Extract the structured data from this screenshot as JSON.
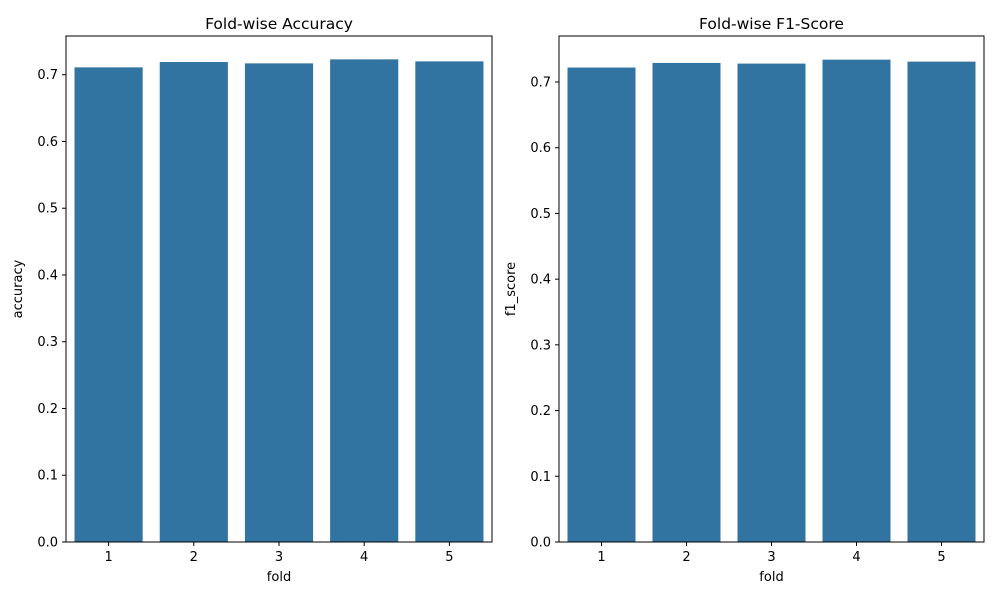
{
  "chart_data": [
    {
      "type": "bar",
      "title": "Fold-wise Accuracy",
      "xlabel": "fold",
      "ylabel": "accuracy",
      "categories": [
        "1",
        "2",
        "3",
        "4",
        "5"
      ],
      "values": [
        0.711,
        0.719,
        0.717,
        0.723,
        0.72
      ],
      "ylim": [
        0,
        0.758
      ],
      "yticks": [
        0.0,
        0.1,
        0.2,
        0.3,
        0.4,
        0.5,
        0.6,
        0.7
      ],
      "ytick_labels": [
        "0.0",
        "0.1",
        "0.2",
        "0.3",
        "0.4",
        "0.5",
        "0.6",
        "0.7"
      ],
      "bar_color": "#3274a1",
      "grid": false,
      "legend": "none"
    },
    {
      "type": "bar",
      "title": "Fold-wise F1-Score",
      "xlabel": "fold",
      "ylabel": "f1_score",
      "categories": [
        "1",
        "2",
        "3",
        "4",
        "5"
      ],
      "values": [
        0.722,
        0.729,
        0.728,
        0.734,
        0.731
      ],
      "ylim": [
        0,
        0.77
      ],
      "yticks": [
        0.0,
        0.1,
        0.2,
        0.3,
        0.4,
        0.5,
        0.6,
        0.7
      ],
      "ytick_labels": [
        "0.0",
        "0.1",
        "0.2",
        "0.3",
        "0.4",
        "0.5",
        "0.6",
        "0.7"
      ],
      "bar_color": "#3274a1",
      "grid": false,
      "legend": "none"
    }
  ]
}
